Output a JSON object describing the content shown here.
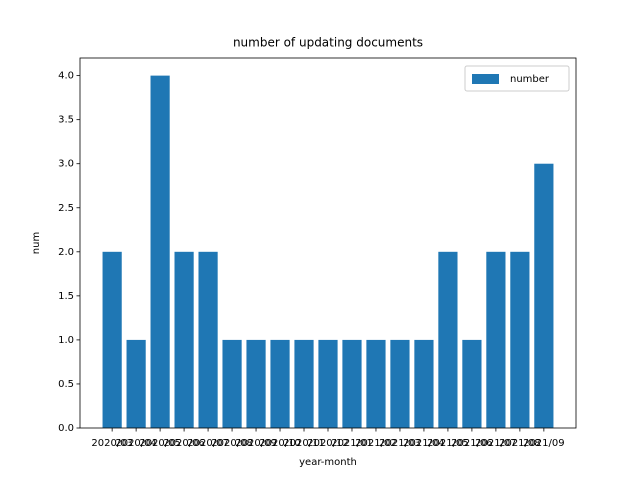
{
  "chart_data": {
    "type": "bar",
    "title": "number of updating documents",
    "x_label": "year-month",
    "y_label": "num",
    "categories": [
      "2020/03",
      "2020/04",
      "2020/05",
      "2020/06",
      "2020/07",
      "2020/08",
      "2020/09",
      "2020/10",
      "2020/11",
      "2020/12",
      "2021/01",
      "2021/02",
      "2021/03",
      "2021/04",
      "2021/05",
      "2021/06",
      "2021/07",
      "2021/08",
      "2021/09"
    ],
    "series": [
      {
        "name": "number",
        "color": "#1f77b4",
        "values": [
          2,
          1,
          4,
          2,
          2,
          1,
          1,
          1,
          1,
          1,
          1,
          1,
          1,
          1,
          2,
          1,
          2,
          2,
          3
        ]
      }
    ],
    "ylim": [
      0,
      4.2
    ],
    "yticks": [
      {
        "value": 0,
        "label": "0.0"
      },
      {
        "value": 0.5,
        "label": "0.5"
      },
      {
        "value": 1,
        "label": "1.0"
      },
      {
        "value": 1.5,
        "label": "1.5"
      },
      {
        "value": 2,
        "label": "2.0"
      },
      {
        "value": 2.5,
        "label": "2.5"
      },
      {
        "value": 3,
        "label": "3.0"
      },
      {
        "value": 3.5,
        "label": "3.5"
      },
      {
        "value": 4,
        "label": "4.0"
      }
    ],
    "legend": "upper right"
  }
}
